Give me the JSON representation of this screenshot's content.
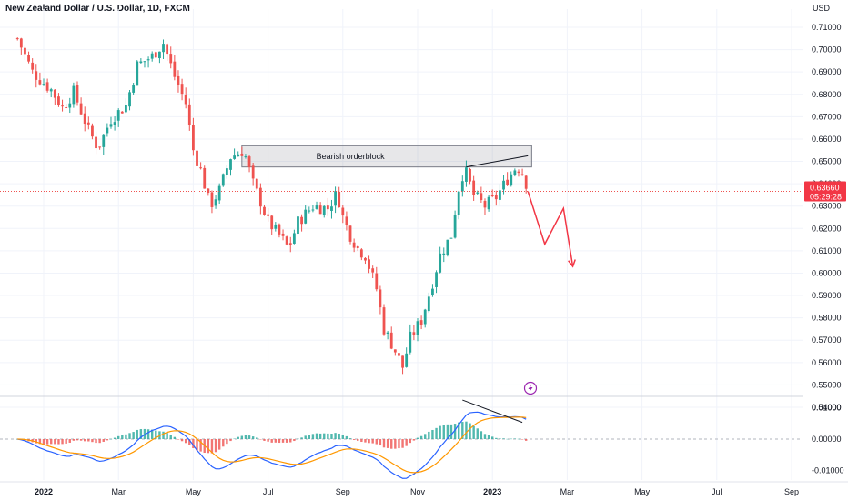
{
  "header": {
    "title": "New Zealand Dollar / U.S. Dollar, 1D, FXCM",
    "currency": "USD"
  },
  "colors": {
    "bull": "#26a69a",
    "bear": "#ef5350",
    "macd_line": "#2962ff",
    "signal_line": "#ff9800",
    "arrow": "#f23645",
    "grid": "#f0f3fa",
    "price_tag_bg": "#f23645"
  },
  "chart_data": [
    {
      "type": "candlestick",
      "title": "New Zealand Dollar / U.S. Dollar, 1D, FXCM",
      "y_unit": "USD",
      "ylim": [
        0.54,
        0.71
      ],
      "y_ticks": [
        "0.71000",
        "0.70000",
        "0.69000",
        "0.68000",
        "0.67000",
        "0.66000",
        "0.65000",
        "0.64000",
        "0.63000",
        "0.62000",
        "0.61000",
        "0.60000",
        "0.59000",
        "0.58000",
        "0.57000",
        "0.56000",
        "0.55000",
        "0.54000"
      ],
      "x_ticks": [
        {
          "label": "2022",
          "month": 0,
          "bold": true
        },
        {
          "label": "Mar",
          "month": 2,
          "bold": false
        },
        {
          "label": "May",
          "month": 4,
          "bold": false
        },
        {
          "label": "Jul",
          "month": 6,
          "bold": false
        },
        {
          "label": "Sep",
          "month": 8,
          "bold": false
        },
        {
          "label": "Nov",
          "month": 10,
          "bold": false
        },
        {
          "label": "2023",
          "month": 12,
          "bold": true
        },
        {
          "label": "Mar",
          "month": 14,
          "bold": false
        },
        {
          "label": "May",
          "month": 16,
          "bold": false
        },
        {
          "label": "Jul",
          "month": 18,
          "bold": false
        },
        {
          "label": "Sep",
          "month": 20,
          "bold": false
        }
      ],
      "grid": true,
      "close_path": [
        [
          -0.7,
          0.705
        ],
        [
          -0.3,
          0.69
        ],
        [
          0.2,
          0.682
        ],
        [
          0.5,
          0.674
        ],
        [
          0.8,
          0.681
        ],
        [
          1.2,
          0.664
        ],
        [
          1.45,
          0.656
        ],
        [
          1.8,
          0.669
        ],
        [
          2.2,
          0.675
        ],
        [
          2.5,
          0.693
        ],
        [
          2.9,
          0.697
        ],
        [
          3.2,
          0.703
        ],
        [
          3.5,
          0.688
        ],
        [
          3.8,
          0.676
        ],
        [
          4.0,
          0.655
        ],
        [
          4.2,
          0.646
        ],
        [
          4.45,
          0.63
        ],
        [
          4.7,
          0.637
        ],
        [
          5.0,
          0.652
        ],
        [
          5.35,
          0.655
        ],
        [
          5.6,
          0.64
        ],
        [
          5.8,
          0.632
        ],
        [
          6.0,
          0.623
        ],
        [
          6.3,
          0.617
        ],
        [
          6.55,
          0.611
        ],
        [
          6.8,
          0.623
        ],
        [
          7.2,
          0.63
        ],
        [
          7.6,
          0.629
        ],
        [
          7.85,
          0.636
        ],
        [
          8.0,
          0.625
        ],
        [
          8.2,
          0.617
        ],
        [
          8.4,
          0.611
        ],
        [
          8.6,
          0.608
        ],
        [
          8.9,
          0.593
        ],
        [
          9.1,
          0.575
        ],
        [
          9.35,
          0.567
        ],
        [
          9.6,
          0.558
        ],
        [
          9.8,
          0.571
        ],
        [
          10.1,
          0.579
        ],
        [
          10.35,
          0.593
        ],
        [
          10.6,
          0.608
        ],
        [
          10.9,
          0.617
        ],
        [
          11.1,
          0.638
        ],
        [
          11.25,
          0.647
        ],
        [
          11.5,
          0.635
        ],
        [
          11.8,
          0.63
        ],
        [
          12.1,
          0.634
        ],
        [
          12.4,
          0.642
        ],
        [
          12.65,
          0.648
        ],
        [
          12.85,
          0.644
        ],
        [
          12.95,
          0.6366
        ]
      ],
      "last_price": "0.63660",
      "countdown": "05:29:28",
      "zone": {
        "label": "Bearish orderblock",
        "top": 0.657,
        "bottom": 0.6475,
        "x_start": 5.3,
        "x_end": 13.05
      },
      "trendline": [
        [
          11.3,
          0.6475
        ],
        [
          12.95,
          0.6525
        ]
      ],
      "projection_arrow": [
        [
          12.95,
          0.6366
        ],
        [
          13.4,
          0.613
        ],
        [
          13.9,
          0.629
        ],
        [
          14.15,
          0.603
        ]
      ]
    },
    {
      "type": "macd",
      "ylim": [
        -0.013,
        0.013
      ],
      "y_ticks": [
        "0.01000",
        "0.00000",
        "-0.01000"
      ],
      "series": [
        {
          "name": "MACD",
          "role": "macd"
        },
        {
          "name": "Signal",
          "role": "signal"
        },
        {
          "name": "Histogram",
          "role": "histogram"
        }
      ],
      "divergence_line": [
        [
          11.2,
          0.0124
        ],
        [
          12.8,
          0.0053
        ]
      ]
    }
  ]
}
